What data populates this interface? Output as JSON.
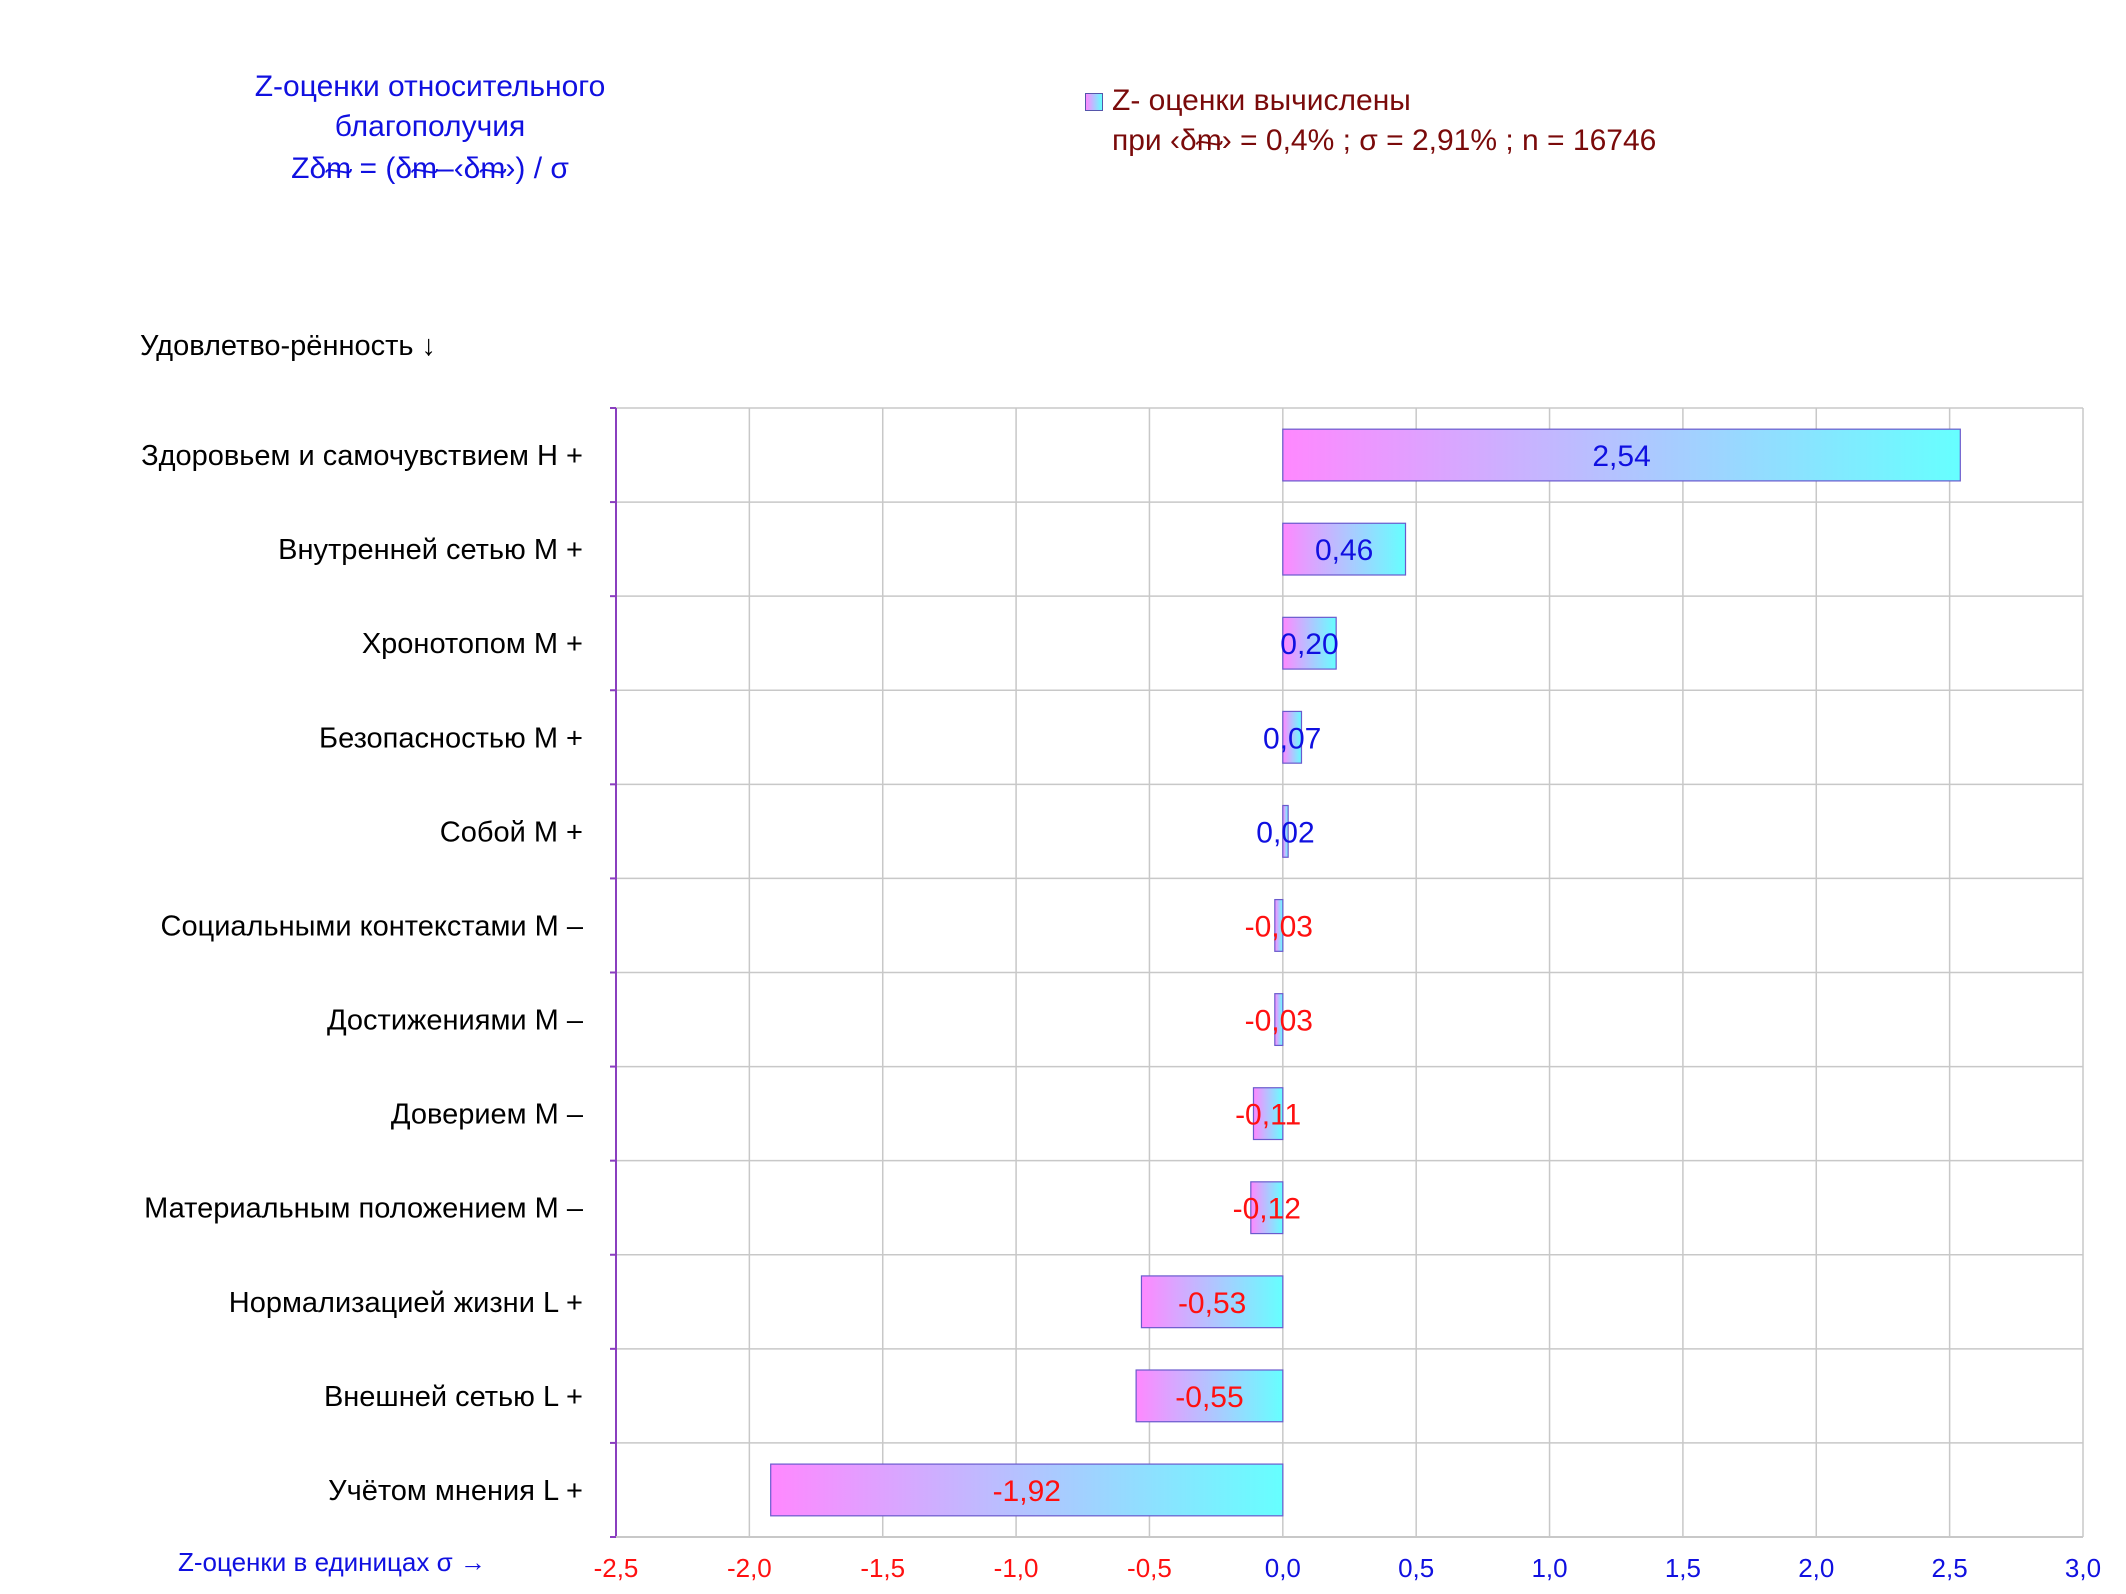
{
  "header": {
    "title_lines": [
      "Z-оценки  относительного",
      "благополучия",
      "Zδᵯ = (δᵯ–‹δᵯ›)  / σ"
    ],
    "legend_line1": "Z- оценки вычислены",
    "legend_line2": "при ‹δᵯ› = 0,4% ; σ = 2,91% ; n = 16746",
    "ylabel": "Удовлетво-рённость ↓",
    "xlabel": "Z-оценки в единицах σ →"
  },
  "colors": {
    "positive_label": "#1010e0",
    "negative_label": "#ff1010",
    "bar_gradient_start": "#ff88ff",
    "bar_gradient_end": "#66ffff",
    "grid": "#c8c8c8",
    "axis": "#8a3fbf"
  },
  "chart_data": {
    "type": "bar",
    "orientation": "horizontal",
    "xlim": [
      -2.5,
      3.0
    ],
    "xticks": [
      -2.5,
      -2.0,
      -1.5,
      -1.0,
      -0.5,
      0.0,
      0.5,
      1.0,
      1.5,
      2.0,
      2.5,
      3.0
    ],
    "xtick_labels": [
      "-2,5",
      "-2,0",
      "-1,5",
      "-1,0",
      "-0,5",
      "0,0",
      "0,5",
      "1,0",
      "1,5",
      "2,0",
      "2,5",
      "3,0"
    ],
    "grid": true,
    "categories": [
      "Здоровьем и самочувствием  H +",
      "Внутренней сетью  M +",
      "Хронотопом  M +",
      "Безопасностью  M +",
      "Собой  M +",
      "Социальными контекстами  M –",
      "Достижениями  M –",
      "Доверием  M –",
      "Материальным положением  M –",
      "Нормализацией жизни  L +",
      "Внешней сетью  L +",
      "Учётом мнения  L +"
    ],
    "values": [
      2.54,
      0.46,
      0.2,
      0.07,
      0.02,
      -0.03,
      -0.03,
      -0.11,
      -0.12,
      -0.53,
      -0.55,
      -1.92
    ],
    "value_labels": [
      "2,54",
      "0,46",
      "0,20",
      "0,07",
      "0,02",
      "-0,03",
      "-0,03",
      "-0,11",
      "-0,12",
      "-0,53",
      "-0,55",
      "-1,92"
    ],
    "legend_placement": "top-right"
  }
}
